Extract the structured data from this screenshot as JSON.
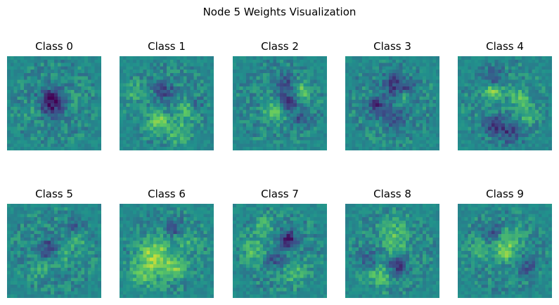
{
  "figure": {
    "title": "Node 5 Weights Visualization",
    "colormap": "viridis",
    "colormap_stops": [
      "#440154",
      "#3b528b",
      "#21918c",
      "#5ec962",
      "#fde725"
    ]
  },
  "chart_data": {
    "type": "heatmap",
    "title": "Node 5 Weights Visualization",
    "grid_shape": [
      28,
      28
    ],
    "grid_layout": [
      2,
      5
    ],
    "axes": "off",
    "panels": [
      {
        "title": "Class 0"
      },
      {
        "title": "Class 1"
      },
      {
        "title": "Class 2"
      },
      {
        "title": "Class 3"
      },
      {
        "title": "Class 4"
      },
      {
        "title": "Class 5"
      },
      {
        "title": "Class 6"
      },
      {
        "title": "Class 7"
      },
      {
        "title": "Class 8"
      },
      {
        "title": "Class 9"
      }
    ]
  }
}
